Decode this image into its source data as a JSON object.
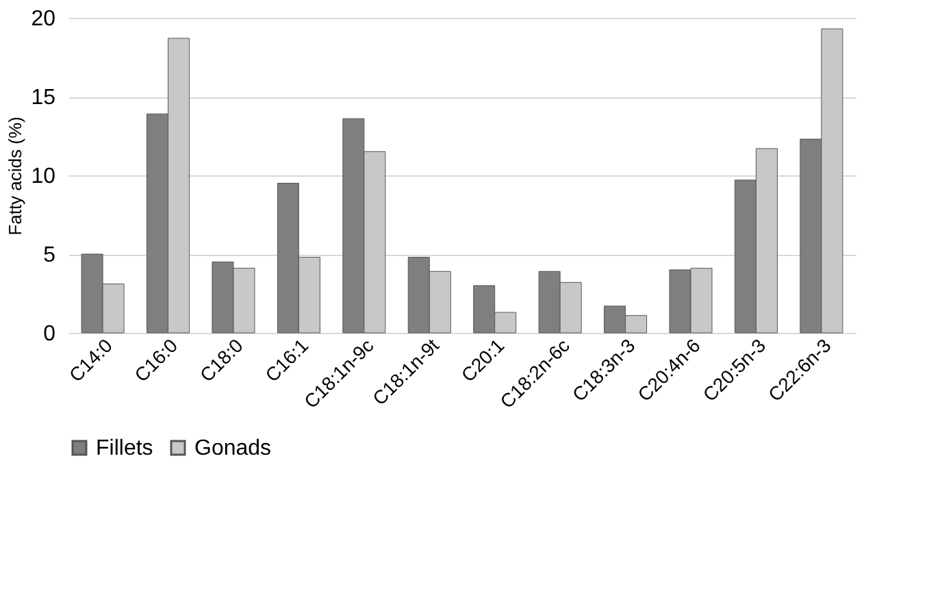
{
  "chart_data": {
    "type": "bar",
    "ylabel": "Fatty acids (%)",
    "categories": [
      "C14:0",
      "C16:0",
      "C18:0",
      "C16:1",
      "C18:1n-9c",
      "C18:1n-9t",
      "C20:1",
      "C18:2n-6c",
      "C18:3n-3",
      "C20:4n-6",
      "C20:5n-3",
      "C22:6n-3"
    ],
    "series": [
      {
        "name": "Fillets",
        "color": "#7f7f7f",
        "values": [
          5.0,
          13.9,
          4.5,
          9.5,
          13.6,
          4.8,
          3.0,
          3.9,
          1.7,
          4.0,
          9.7,
          12.3
        ]
      },
      {
        "name": "Gonads",
        "color": "#c8c8c8",
        "values": [
          3.1,
          18.7,
          4.1,
          4.8,
          11.5,
          3.9,
          1.3,
          3.2,
          1.1,
          4.1,
          11.7,
          19.3
        ]
      }
    ],
    "ylim": [
      0,
      20
    ],
    "yticks": [
      0,
      5,
      10,
      15,
      20
    ],
    "grid": "y",
    "legend": "bottom"
  }
}
